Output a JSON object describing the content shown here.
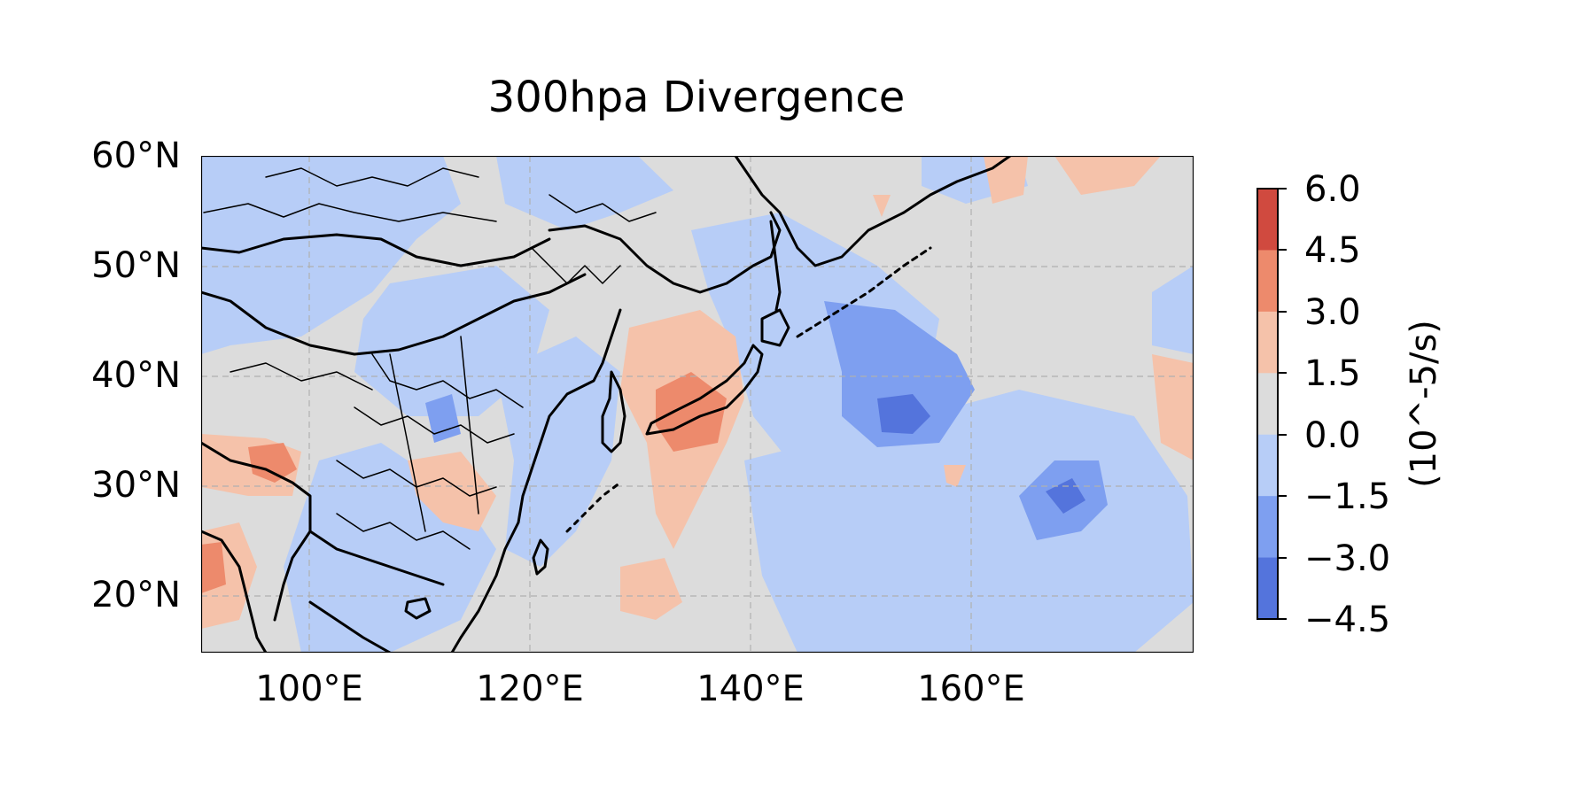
{
  "title": "300hpa Divergence",
  "lat_labels": [
    "60°N",
    "50°N",
    "40°N",
    "30°N",
    "20°N"
  ],
  "lon_labels": [
    "100°E",
    "120°E",
    "140°E",
    "160°E"
  ],
  "colorbar": {
    "label": "(10^-5/s)",
    "ticks": [
      "6.0",
      "4.5",
      "3.0",
      "1.5",
      "0.0",
      "−1.5",
      "−3.0",
      "−4.5"
    ],
    "colors_top_to_bottom": [
      "#d04a3f",
      "#ed8a6c",
      "#f5c2aa",
      "#dcdcdc",
      "#b7cdf7",
      "#7e9ff0",
      "#5474dc"
    ]
  },
  "palette": {
    "neutral": "#dcdcdc",
    "neg1": "#b7cdf7",
    "neg2": "#7e9ff0",
    "neg3": "#5474dc",
    "pos1": "#f5c2aa",
    "pos2": "#ed8a6c",
    "pos3": "#d04a3f"
  }
}
